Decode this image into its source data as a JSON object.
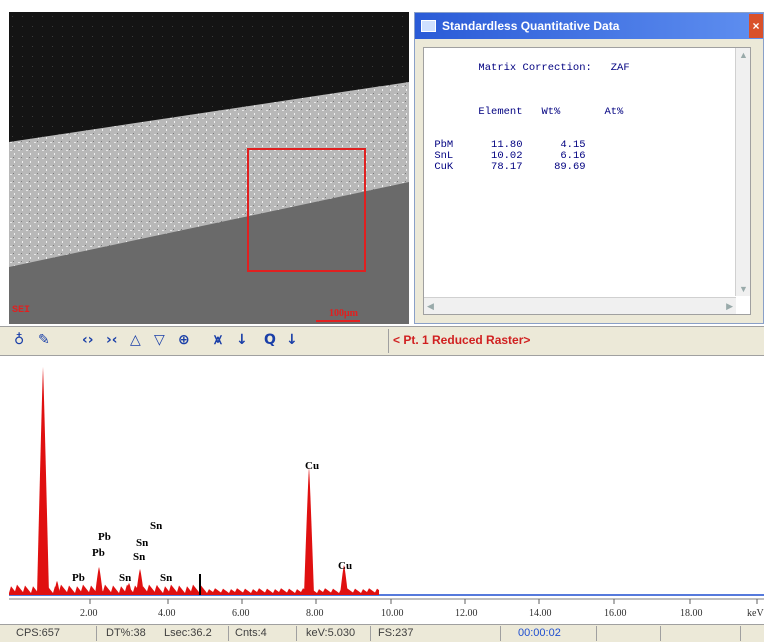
{
  "sem_image": {
    "label": "SEI",
    "scale_bar": "100μm"
  },
  "quant_window": {
    "title": "Standardless Quantitative Data",
    "close": "×",
    "matrix_label": "Matrix Correction:",
    "matrix_value": "ZAF",
    "columns": [
      "Element",
      "Wt%",
      "At%"
    ],
    "rows": [
      {
        "element": "PbM",
        "wt": "11.80",
        "at": "4.15"
      },
      {
        "element": "SnL",
        "wt": "10.02",
        "at": "6.16"
      },
      {
        "element": "CuK",
        "wt": "78.17",
        "at": "89.69"
      }
    ]
  },
  "toolbar": {
    "raster_label": "< Pt. 1 Reduced Raster>"
  },
  "spectrum": {
    "peak_labels": [
      "Cu",
      "Cu",
      "Pb",
      "Pb",
      "Pb",
      "Sn",
      "Sn",
      "Sn",
      "Sn",
      "Sn"
    ],
    "x_ticks": [
      "2.00",
      "4.00",
      "6.00",
      "8.00",
      "10.00",
      "12.00",
      "14.00",
      "16.00",
      "18.00",
      "keV"
    ],
    "colors": {
      "peak_fill": "#e01010",
      "baseline": "#1f4fd0",
      "cursor": "#000000"
    }
  },
  "statusbar": {
    "cps": "CPS:657",
    "dt": "DT%:38",
    "lsec": "Lsec:36.2",
    "cnts": "Cnts:4",
    "kev": "keV:5.030",
    "fs": "FS:237",
    "time": "00:00:02"
  }
}
